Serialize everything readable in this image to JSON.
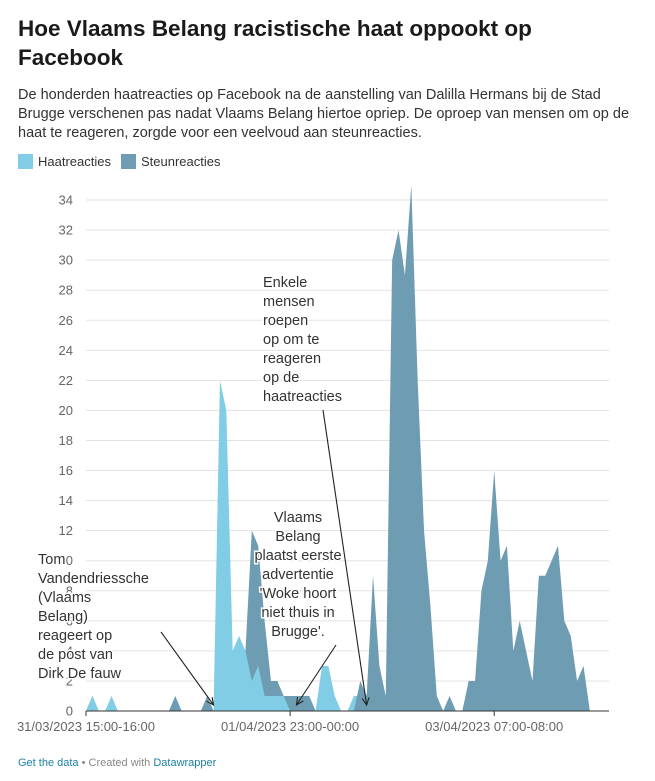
{
  "title": "Hoe Vlaams Belang racistische haat oppookt op Facebook",
  "subtitle": "De honderden haatreacties op Facebook na de aanstelling van Dalilla Hermans bij de Stad Brugge verschenen pas nadat Vlaams Belang hiertoe opriep. De oproep van mensen om op de haat te reageren, zorgde voor een veelvoud aan steunreacties.",
  "legend": [
    {
      "label": "Haatreacties",
      "color": "#82cde6"
    },
    {
      "label": "Steunreacties",
      "color": "#6e9db3"
    }
  ],
  "footer": {
    "get_data": "Get the data",
    "created_with": " • Created with ",
    "datawrapper": "Datawrapper"
  },
  "chart_data": {
    "type": "area",
    "ylim": [
      0,
      35
    ],
    "yticks": [
      0,
      2,
      4,
      6,
      8,
      10,
      12,
      14,
      16,
      18,
      20,
      22,
      24,
      26,
      28,
      30,
      32,
      34
    ],
    "x_tick_labels": [
      {
        "label": "31/03/2023 15:00-16:00",
        "index": 0
      },
      {
        "label": "01/04/2023 23:00-00:00",
        "index": 32
      },
      {
        "label": "03/04/2023 07:00-08:00",
        "index": 64
      }
    ],
    "x_count": 83,
    "series": [
      {
        "name": "Steunreacties",
        "color": "#6e9db3",
        "values": [
          0,
          1,
          0,
          0,
          0,
          0,
          0,
          0,
          0,
          0,
          0,
          0,
          0,
          0,
          1,
          0,
          0,
          0,
          0,
          1,
          0,
          0,
          0,
          0,
          0,
          4,
          12,
          11,
          6,
          2,
          2,
          1,
          1,
          1,
          1,
          1,
          0,
          0,
          0,
          0,
          0,
          0,
          0,
          0,
          0,
          0,
          0,
          0,
          0,
          0,
          0,
          0,
          0,
          0,
          0,
          0,
          0,
          0,
          0,
          0,
          0,
          0,
          0,
          0,
          0,
          0,
          0,
          0,
          0,
          0,
          0,
          0,
          0,
          0,
          0,
          0,
          0,
          0,
          0,
          0,
          0,
          0,
          0
        ]
      },
      {
        "name": "Haatreacties",
        "color": "#82cde6",
        "values": [
          0,
          1,
          0,
          0,
          1,
          0,
          0,
          0,
          0,
          0,
          0,
          0,
          0,
          0,
          0,
          0,
          0,
          0,
          0,
          0,
          0,
          22,
          20,
          4,
          5,
          4,
          2,
          3,
          1,
          1,
          1,
          1,
          0,
          0,
          0,
          0,
          0,
          3,
          3,
          1,
          0,
          0,
          1,
          1,
          0,
          0,
          0,
          1,
          0,
          1,
          0,
          0,
          0,
          0,
          0,
          1,
          0,
          0,
          0,
          0,
          0,
          0,
          0,
          0,
          0,
          0,
          0,
          0,
          0,
          0,
          0,
          0,
          0,
          0,
          0,
          0,
          0,
          0,
          0,
          0,
          0,
          0,
          0
        ]
      },
      {
        "name": "Steunreacties",
        "color": "#6e9db3",
        "values": [
          0,
          0,
          0,
          0,
          0,
          0,
          0,
          0,
          0,
          0,
          0,
          0,
          0,
          0,
          0,
          0,
          0,
          0,
          0,
          0,
          0,
          0,
          0,
          0,
          0,
          0,
          0,
          0,
          0,
          0,
          0,
          0,
          0,
          0,
          0,
          0,
          0,
          0,
          0,
          0,
          0,
          0,
          0,
          2,
          1,
          9,
          3,
          1,
          30,
          32,
          29,
          35,
          22,
          12,
          7,
          1,
          0,
          1,
          0,
          0,
          2,
          2,
          8,
          10,
          16,
          10,
          11,
          4,
          6,
          4,
          2,
          9,
          9,
          10,
          11,
          6,
          5,
          2,
          3,
          0,
          0,
          0,
          0
        ]
      }
    ],
    "annotations": [
      {
        "text": "Tom\nVandendriessche\n(Vlaams\nBelang)\nreageert op\nde post van\nDirk De fauw",
        "arrow_to_index": 20
      },
      {
        "text": "Vlaams\nBelang\nplaatst eerste\nadvertentie\n'Woke hoort\nniet thuis in\nBrugge'.",
        "arrow_to_index": 33
      },
      {
        "text": "Enkele\nmensen\nroepen\nop om te\nreageren\nop de\nhaatreacties",
        "arrow_to_index": 44
      }
    ]
  }
}
